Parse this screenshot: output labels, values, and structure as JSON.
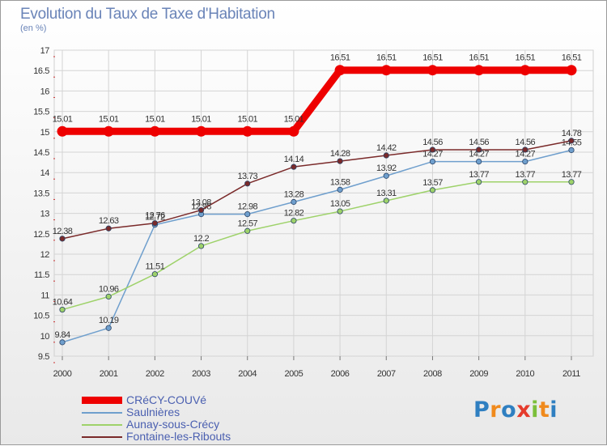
{
  "header": {
    "title": "Evolution du Taux de Taxe d'Habitation",
    "unit": "(en %)"
  },
  "logo": {
    "parts": [
      {
        "text": "P",
        "color": "#2f7fc1"
      },
      {
        "text": "r",
        "color": "#f08a1c"
      },
      {
        "text": "o",
        "color": "#2f7fc1"
      },
      {
        "text": "x",
        "color": "#e53b2c"
      },
      {
        "text": "i",
        "color": "#7bbf3a"
      },
      {
        "text": "t",
        "color": "#f08a1c"
      },
      {
        "text": "i",
        "color": "#2f7fc1"
      }
    ]
  },
  "chart_data": {
    "type": "line",
    "title": "Evolution du Taux de Taxe d'Habitation",
    "ylabel": "(en %)",
    "xlabel": "",
    "x": [
      "2000",
      "2001",
      "2002",
      "2003",
      "2004",
      "2005",
      "2006",
      "2007",
      "2008",
      "2009",
      "2010",
      "2011"
    ],
    "ylim": [
      9.5,
      17
    ],
    "yticks": [
      "9.5",
      "10",
      "10.5",
      "11",
      "11.5",
      "12",
      "12.5",
      "13",
      "13.5",
      "14",
      "14.5",
      "15",
      "15.5",
      "16",
      "16.5",
      "17"
    ],
    "grid": true,
    "legend": "bottom-left",
    "series": [
      {
        "name": "CRéCY-COUVé",
        "color": "#ee0000",
        "labels": [
          "15.01",
          "15.01",
          "15.01",
          "15.01",
          "15.01",
          "15.01",
          "16.51",
          "16.51",
          "16.51",
          "16.51",
          "16.51",
          "16.51"
        ],
        "values": [
          15.01,
          15.01,
          15.01,
          15.01,
          15.01,
          15.01,
          16.51,
          16.51,
          16.51,
          16.51,
          16.51,
          16.51
        ]
      },
      {
        "name": "Saulnières",
        "color": "#6f9fcd",
        "labels": [
          "9.84",
          "10.19",
          "12.72",
          "12.98",
          "12.98",
          "13.28",
          "13.58",
          "13.92",
          "14.27",
          "14.27",
          "14.27",
          "14.55"
        ],
        "values": [
          9.84,
          10.19,
          12.72,
          12.98,
          12.98,
          13.28,
          13.58,
          13.92,
          14.27,
          14.27,
          14.27,
          14.55
        ]
      },
      {
        "name": "Aunay-sous-Crécy",
        "color": "#9ed26a",
        "labels": [
          "10.64",
          "10.96",
          "11.51",
          "12.2",
          "12.57",
          "12.82",
          "13.05",
          "13.31",
          "13.57",
          "13.77",
          "13.77",
          "13.77"
        ],
        "values": [
          10.64,
          10.96,
          11.51,
          12.2,
          12.57,
          12.82,
          13.05,
          13.31,
          13.57,
          13.77,
          13.77,
          13.77
        ]
      },
      {
        "name": "Fontaine-les-Ribouts",
        "color": "#7a2a2a",
        "labels": [
          "12.38",
          "12.63",
          "12.76",
          "13.08",
          "13.73",
          "14.14",
          "14.28",
          "14.42",
          "14.56",
          "14.56",
          "14.56",
          "14.78"
        ],
        "values": [
          12.38,
          12.63,
          12.76,
          13.08,
          13.73,
          14.14,
          14.28,
          14.42,
          14.56,
          14.56,
          14.56,
          14.78
        ]
      }
    ]
  }
}
